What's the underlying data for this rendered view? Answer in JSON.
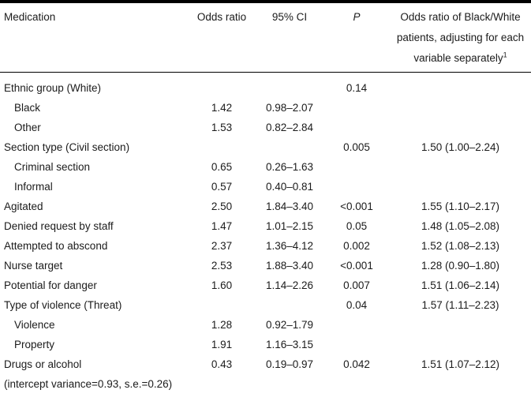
{
  "table": {
    "headers": {
      "medication": "Medication",
      "odds_ratio": "Odds ratio",
      "ci": "95% CI",
      "p": "P",
      "or_bw_lines": [
        "Odds ratio of Black/White",
        "patients, adjusting for each",
        "variable separately"
      ],
      "or_bw_footnote": "1"
    },
    "rows": [
      {
        "label": "Ethnic group (White)",
        "indent": false,
        "odds_ratio": "",
        "ci_95": "",
        "p": "0.14",
        "or_black_white": ""
      },
      {
        "label": "Black",
        "indent": true,
        "odds_ratio": "1.42",
        "ci_95": "0.98–2.07",
        "p": "",
        "or_black_white": ""
      },
      {
        "label": "Other",
        "indent": true,
        "odds_ratio": "1.53",
        "ci_95": "0.82–2.84",
        "p": "",
        "or_black_white": ""
      },
      {
        "label": "Section type (Civil section)",
        "indent": false,
        "odds_ratio": "",
        "ci_95": "",
        "p": "0.005",
        "or_black_white": "1.50 (1.00–2.24)"
      },
      {
        "label": "Criminal section",
        "indent": true,
        "odds_ratio": "0.65",
        "ci_95": "0.26–1.63",
        "p": "",
        "or_black_white": ""
      },
      {
        "label": "Informal",
        "indent": true,
        "odds_ratio": "0.57",
        "ci_95": "0.40–0.81",
        "p": "",
        "or_black_white": ""
      },
      {
        "label": "Agitated",
        "indent": false,
        "odds_ratio": "2.50",
        "ci_95": "1.84–3.40",
        "p": "<0.001",
        "or_black_white": "1.55 (1.10–2.17)"
      },
      {
        "label": "Denied request by staff",
        "indent": false,
        "odds_ratio": "1.47",
        "ci_95": "1.01–2.15",
        "p": "0.05",
        "or_black_white": "1.48 (1.05–2.08)"
      },
      {
        "label": "Attempted to abscond",
        "indent": false,
        "odds_ratio": "2.37",
        "ci_95": "1.36–4.12",
        "p": "0.002",
        "or_black_white": "1.52 (1.08–2.13)"
      },
      {
        "label": "Nurse target",
        "indent": false,
        "odds_ratio": "2.53",
        "ci_95": "1.88–3.40",
        "p": "<0.001",
        "or_black_white": "1.28 (0.90–1.80)"
      },
      {
        "label": "Potential for danger",
        "indent": false,
        "odds_ratio": "1.60",
        "ci_95": "1.14–2.26",
        "p": "0.007",
        "or_black_white": "1.51 (1.06–2.14)"
      },
      {
        "label": "Type of violence (Threat)",
        "indent": false,
        "odds_ratio": "",
        "ci_95": "",
        "p": "0.04",
        "or_black_white": "1.57 (1.11–2.23)"
      },
      {
        "label": "Violence",
        "indent": true,
        "odds_ratio": "1.28",
        "ci_95": "0.92–1.79",
        "p": "",
        "or_black_white": ""
      },
      {
        "label": "Property",
        "indent": true,
        "odds_ratio": "1.91",
        "ci_95": "1.16–3.15",
        "p": "",
        "or_black_white": ""
      },
      {
        "label": "Drugs or alcohol",
        "indent": false,
        "odds_ratio": "0.43",
        "ci_95": "0.19–0.97",
        "p": "0.042",
        "or_black_white": "1.51 (1.07–2.12)"
      },
      {
        "label": "(intercept variance=0.93, s.e.=0.26)",
        "indent": false,
        "odds_ratio": "",
        "ci_95": "",
        "p": "",
        "or_black_white": ""
      }
    ]
  }
}
